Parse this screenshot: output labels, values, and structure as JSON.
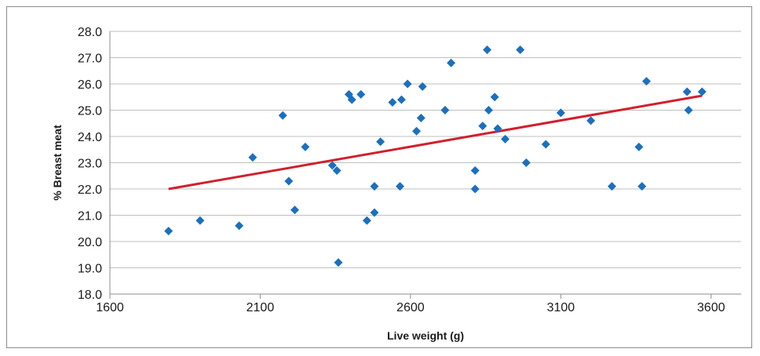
{
  "chart_data": {
    "type": "scatter",
    "xlabel": "Live weight (g)",
    "ylabel": "% Breast meat",
    "xlim": [
      1600,
      3700
    ],
    "ylim": [
      18.0,
      28.0
    ],
    "x_ticks": [
      1600,
      2100,
      2600,
      3100,
      3600
    ],
    "y_ticks": [
      "18.0",
      "19.0",
      "20.0",
      "21.0",
      "22.0",
      "23.0",
      "24.0",
      "25.0",
      "26.0",
      "27.0",
      "28.0"
    ],
    "grid": "horizontal",
    "legend": "none",
    "colors": {
      "points": "#1f6fb8",
      "trendline": "#d0202e",
      "grid": "#bfbfbf"
    },
    "points": [
      {
        "x": 1795,
        "y": 20.4
      },
      {
        "x": 1900,
        "y": 20.8
      },
      {
        "x": 2030,
        "y": 20.6
      },
      {
        "x": 2075,
        "y": 23.2
      },
      {
        "x": 2175,
        "y": 24.8
      },
      {
        "x": 2195,
        "y": 22.3
      },
      {
        "x": 2215,
        "y": 21.2
      },
      {
        "x": 2250,
        "y": 23.6
      },
      {
        "x": 2340,
        "y": 22.9
      },
      {
        "x": 2355,
        "y": 22.7
      },
      {
        "x": 2360,
        "y": 19.2
      },
      {
        "x": 2395,
        "y": 25.6
      },
      {
        "x": 2405,
        "y": 25.4
      },
      {
        "x": 2435,
        "y": 25.6
      },
      {
        "x": 2455,
        "y": 20.8
      },
      {
        "x": 2480,
        "y": 22.1
      },
      {
        "x": 2480,
        "y": 21.1
      },
      {
        "x": 2500,
        "y": 23.8
      },
      {
        "x": 2540,
        "y": 25.3
      },
      {
        "x": 2565,
        "y": 22.1
      },
      {
        "x": 2570,
        "y": 25.4
      },
      {
        "x": 2590,
        "y": 26.0
      },
      {
        "x": 2620,
        "y": 24.2
      },
      {
        "x": 2635,
        "y": 24.7
      },
      {
        "x": 2640,
        "y": 25.9
      },
      {
        "x": 2715,
        "y": 25.0
      },
      {
        "x": 2735,
        "y": 26.8
      },
      {
        "x": 2815,
        "y": 22.7
      },
      {
        "x": 2815,
        "y": 22.0
      },
      {
        "x": 2840,
        "y": 24.4
      },
      {
        "x": 2855,
        "y": 27.3
      },
      {
        "x": 2860,
        "y": 25.0
      },
      {
        "x": 2880,
        "y": 25.5
      },
      {
        "x": 2890,
        "y": 24.3
      },
      {
        "x": 2915,
        "y": 23.9
      },
      {
        "x": 2965,
        "y": 27.3
      },
      {
        "x": 2985,
        "y": 23.0
      },
      {
        "x": 3050,
        "y": 23.7
      },
      {
        "x": 3100,
        "y": 24.9
      },
      {
        "x": 3200,
        "y": 24.6
      },
      {
        "x": 3270,
        "y": 22.1
      },
      {
        "x": 3360,
        "y": 23.6
      },
      {
        "x": 3370,
        "y": 22.1
      },
      {
        "x": 3385,
        "y": 26.1
      },
      {
        "x": 3520,
        "y": 25.7
      },
      {
        "x": 3525,
        "y": 25.0
      },
      {
        "x": 3570,
        "y": 25.7
      }
    ],
    "trendline": {
      "x": [
        1795,
        3570
      ],
      "y": [
        22.0,
        25.55
      ]
    }
  }
}
